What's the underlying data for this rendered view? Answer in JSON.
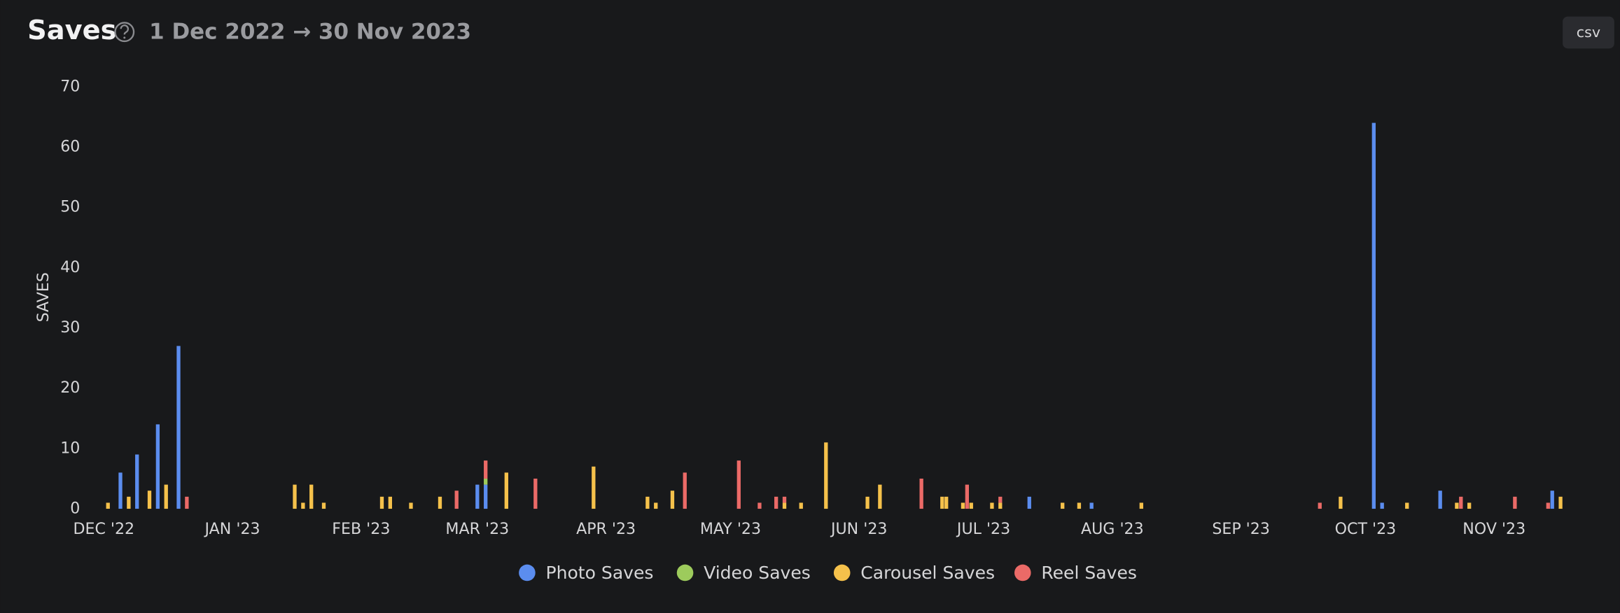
{
  "button": "csv",
  "chart_data": {
    "type": "bar",
    "stacked": true,
    "grid": false,
    "title": "Saves",
    "subtitle": "1 Dec 2022 → 30 Nov 2023",
    "ylabel": "SAVES",
    "xlim": [
      -1,
      353
    ],
    "xticks": [
      {
        "value": 0,
        "label": "DEC '22"
      },
      {
        "value": 31,
        "label": "JAN '23"
      },
      {
        "value": 62,
        "label": "FEB '23"
      },
      {
        "value": 90,
        "label": "MAR '23"
      },
      {
        "value": 121,
        "label": "APR '23"
      },
      {
        "value": 151,
        "label": "MAY '23"
      },
      {
        "value": 182,
        "label": "JUN '23"
      },
      {
        "value": 212,
        "label": "JUL '23"
      },
      {
        "value": 243,
        "label": "AUG '23"
      },
      {
        "value": 274,
        "label": "SEP '23"
      },
      {
        "value": 304,
        "label": "OCT '23"
      },
      {
        "value": 335,
        "label": "NOV '23"
      }
    ],
    "ylim": [
      0,
      70
    ],
    "yticks": [
      0,
      10,
      20,
      30,
      40,
      50,
      60,
      70
    ],
    "series": [
      {
        "name": "Photo Saves",
        "color": "#5b8def",
        "x": [
          4,
          8,
          13,
          18,
          90,
          92,
          223,
          238,
          306,
          308,
          322,
          349
        ],
        "values": [
          6,
          9,
          14,
          27,
          4,
          4,
          2,
          1,
          64,
          1,
          3,
          3
        ]
      },
      {
        "name": "Video Saves",
        "color": "#9dcb5c",
        "x": [
          92
        ],
        "values": [
          1
        ]
      },
      {
        "name": "Carousel Saves",
        "color": "#f5c14b",
        "x": [
          1,
          6,
          11,
          15,
          46,
          48,
          50,
          53,
          67,
          69,
          74,
          81,
          97,
          118,
          131,
          133,
          137,
          164,
          168,
          174,
          184,
          187,
          202,
          203,
          207,
          209,
          214,
          216,
          231,
          235,
          250,
          298,
          314,
          326,
          329,
          351
        ],
        "values": [
          1,
          2,
          3,
          4,
          4,
          1,
          4,
          1,
          2,
          2,
          1,
          2,
          6,
          7,
          2,
          1,
          3,
          1,
          1,
          11,
          2,
          4,
          2,
          2,
          1,
          1,
          1,
          1,
          1,
          1,
          1,
          2,
          1,
          1,
          1,
          2
        ]
      },
      {
        "name": "Reel Saves",
        "color": "#eb6a67",
        "x": [
          20,
          85,
          92,
          104,
          140,
          153,
          158,
          162,
          164,
          197,
          208,
          216,
          293,
          327,
          340,
          348
        ],
        "values": [
          2,
          3,
          3,
          5,
          6,
          8,
          1,
          2,
          1,
          5,
          4,
          1,
          1,
          2,
          2,
          1
        ]
      }
    ]
  }
}
